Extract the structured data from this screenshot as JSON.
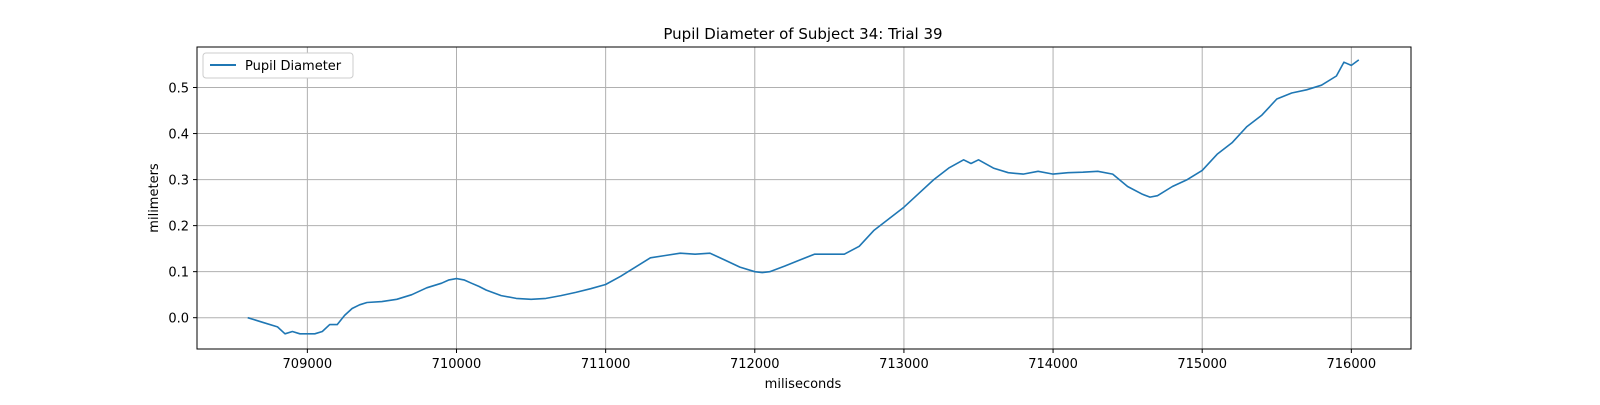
{
  "chart_data": {
    "type": "line",
    "title": "Pupil Diameter of Subject 34: Trial 39",
    "xlabel": "miliseconds",
    "ylabel": "milimeters",
    "xlim": [
      708260,
      716400
    ],
    "ylim": [
      -0.068,
      0.588
    ],
    "x_ticks": [
      709000,
      710000,
      711000,
      712000,
      713000,
      714000,
      715000,
      716000
    ],
    "x_tick_labels": [
      "709000",
      "710000",
      "711000",
      "712000",
      "713000",
      "714000",
      "715000",
      "716000"
    ],
    "y_ticks": [
      0.0,
      0.1,
      0.2,
      0.3,
      0.4,
      0.5
    ],
    "y_tick_labels": [
      "0.0",
      "0.1",
      "0.2",
      "0.3",
      "0.4",
      "0.5"
    ],
    "grid": true,
    "legend_position": "upper-left",
    "series": [
      {
        "name": "Pupil Diameter",
        "color": "#1f77b4",
        "x": [
          708600,
          708700,
          708800,
          708850,
          708900,
          708950,
          709000,
          709050,
          709100,
          709150,
          709200,
          709250,
          709300,
          709350,
          709400,
          709500,
          709600,
          709700,
          709800,
          709900,
          709950,
          710000,
          710050,
          710100,
          710150,
          710200,
          710300,
          710400,
          710500,
          710600,
          710700,
          710800,
          710900,
          711000,
          711100,
          711200,
          711300,
          711400,
          711500,
          711600,
          711700,
          711800,
          711900,
          712000,
          712050,
          712100,
          712200,
          712300,
          712400,
          712500,
          712600,
          712700,
          712800,
          712900,
          713000,
          713100,
          713200,
          713300,
          713400,
          713450,
          713500,
          713600,
          713700,
          713800,
          713900,
          714000,
          714100,
          714200,
          714300,
          714400,
          714500,
          714600,
          714650,
          714700,
          714800,
          714900,
          715000,
          715100,
          715200,
          715300,
          715400,
          715500,
          715600,
          715700,
          715800,
          715900,
          715950,
          716000,
          716050
        ],
        "y": [
          0.0,
          -0.01,
          -0.02,
          -0.035,
          -0.03,
          -0.035,
          -0.035,
          -0.035,
          -0.03,
          -0.015,
          -0.015,
          0.005,
          0.02,
          0.028,
          0.033,
          0.035,
          0.04,
          0.05,
          0.065,
          0.075,
          0.082,
          0.085,
          0.082,
          0.075,
          0.068,
          0.06,
          0.048,
          0.042,
          0.04,
          0.042,
          0.048,
          0.055,
          0.063,
          0.072,
          0.09,
          0.11,
          0.13,
          0.135,
          0.14,
          0.138,
          0.14,
          0.125,
          0.11,
          0.1,
          0.098,
          0.1,
          0.112,
          0.125,
          0.138,
          0.138,
          0.138,
          0.155,
          0.19,
          0.215,
          0.24,
          0.27,
          0.3,
          0.325,
          0.343,
          0.335,
          0.343,
          0.325,
          0.315,
          0.312,
          0.318,
          0.312,
          0.315,
          0.316,
          0.318,
          0.312,
          0.285,
          0.268,
          0.262,
          0.265,
          0.285,
          0.3,
          0.32,
          0.355,
          0.38,
          0.415,
          0.44,
          0.475,
          0.488,
          0.495,
          0.505,
          0.525,
          0.555,
          0.548,
          0.56
        ]
      }
    ]
  }
}
